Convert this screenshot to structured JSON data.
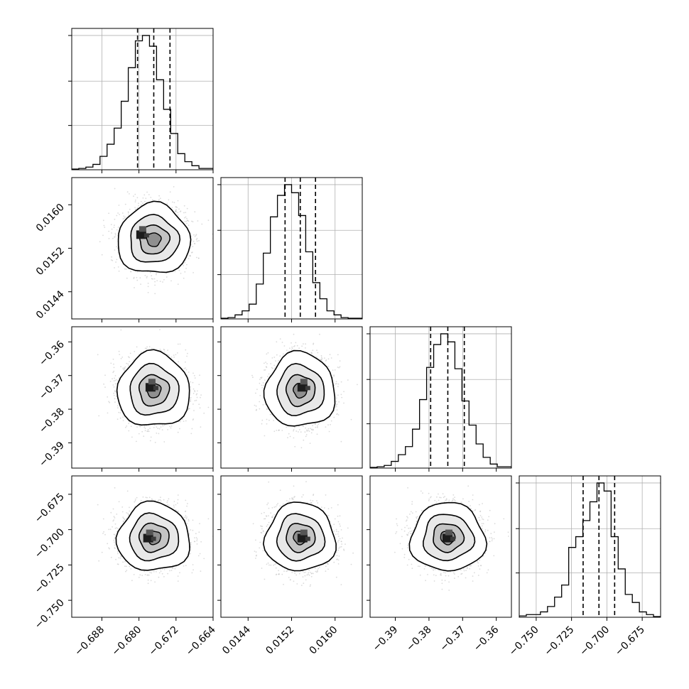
{
  "chart_data": {
    "type": "corner",
    "n_params": 4,
    "quantiles": [
      0.16,
      0.5,
      0.84
    ],
    "grid": true,
    "parameters": [
      {
        "range": [
          -0.6945,
          -0.664
        ],
        "ticks": [
          -0.688,
          -0.68,
          -0.672,
          -0.664
        ],
        "tick_labels": [
          "−0.688",
          "−0.680",
          "−0.672",
          "−0.664"
        ],
        "mean": -0.6768,
        "sd": 0.0034,
        "quantile_values": [
          -0.6803,
          -0.6768,
          -0.6733
        ]
      },
      {
        "range": [
          0.0139,
          0.0165
        ],
        "ticks": [
          0.0144,
          0.0152,
          0.016
        ],
        "tick_labels": [
          "0.0144",
          "0.0152",
          "0.0160"
        ],
        "mean": 0.01536,
        "sd": 0.00028,
        "quantile_values": [
          0.01508,
          0.01536,
          0.01564
        ]
      },
      {
        "range": [
          -0.3975,
          -0.3555
        ],
        "ticks": [
          -0.39,
          -0.38,
          -0.37,
          -0.36
        ],
        "tick_labels": [
          "−0.39",
          "−0.38",
          "−0.37",
          "−0.36"
        ],
        "mean": -0.3744,
        "sd": 0.0048,
        "quantile_values": [
          -0.3795,
          -0.3744,
          -0.3695
        ]
      },
      {
        "range": [
          -0.762,
          -0.662
        ],
        "ticks": [
          -0.75,
          -0.725,
          -0.7,
          -0.675
        ],
        "tick_labels": [
          "−0.750",
          "−0.725",
          "−0.700",
          "−0.675"
        ],
        "mean": -0.7056,
        "sd": 0.0105,
        "quantile_values": [
          -0.7168,
          -0.7056,
          -0.6945
        ]
      }
    ],
    "histograms": [
      [
        0.5,
        1,
        2,
        4,
        10,
        19,
        31,
        51,
        76,
        96,
        100,
        92,
        67,
        45,
        27,
        12,
        6,
        3,
        1,
        1
      ],
      [
        0.5,
        1,
        3,
        6,
        11,
        26,
        49,
        76,
        92,
        100,
        94,
        77,
        50,
        27,
        15,
        6,
        3,
        1,
        0.5,
        0.5
      ],
      [
        0.5,
        1,
        2,
        5,
        10,
        16,
        29,
        51,
        75,
        92,
        100,
        94,
        74,
        50,
        32,
        18,
        8,
        3,
        1,
        1
      ],
      [
        1,
        2,
        2,
        4,
        8,
        15,
        24,
        52,
        60,
        72,
        86,
        100,
        94,
        60,
        36,
        17,
        11,
        4,
        2,
        0.5
      ]
    ],
    "peak_markers": [
      {
        "row": 1,
        "col": 0,
        "x": -0.6795,
        "y": 0.01545
      },
      {
        "row": 2,
        "col": 0,
        "x": -0.6775,
        "y": -0.3735
      },
      {
        "row": 2,
        "col": 1,
        "x": 0.0154,
        "y": -0.3735
      },
      {
        "row": 3,
        "col": 0,
        "x": -0.678,
        "y": -0.706
      },
      {
        "row": 3,
        "col": 1,
        "x": 0.0154,
        "y": -0.706
      },
      {
        "row": 3,
        "col": 2,
        "x": -0.3745,
        "y": -0.706
      }
    ]
  }
}
